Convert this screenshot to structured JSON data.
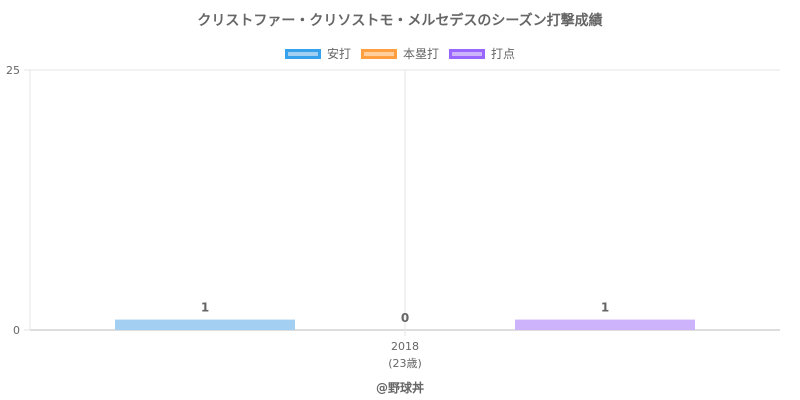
{
  "page": {
    "title": "クリストファー・クリソストモ・メルセデスのシーズン打撃成績",
    "footer": "@野球丼"
  },
  "chart_data": {
    "type": "bar",
    "title": "クリストファー・クリソストモ・メルセデスのシーズン打撃成績",
    "categories": [
      "2018"
    ],
    "category_sublabels": [
      "(23歳)"
    ],
    "series": [
      {
        "name": "安打",
        "values": [
          1
        ],
        "fill": "#a3cff2",
        "border": "#36a2eb"
      },
      {
        "name": "本塁打",
        "values": [
          0
        ],
        "fill": "#ffcf9f",
        "border": "#ff9f40"
      },
      {
        "name": "打点",
        "values": [
          1
        ],
        "fill": "#cdb3fb",
        "border": "#9966ff"
      }
    ],
    "ylim": [
      0,
      25
    ],
    "yticks": [
      0,
      25
    ],
    "xlabel": "",
    "ylabel": "",
    "legend_position": "top",
    "grid": true,
    "data_labels": true
  }
}
